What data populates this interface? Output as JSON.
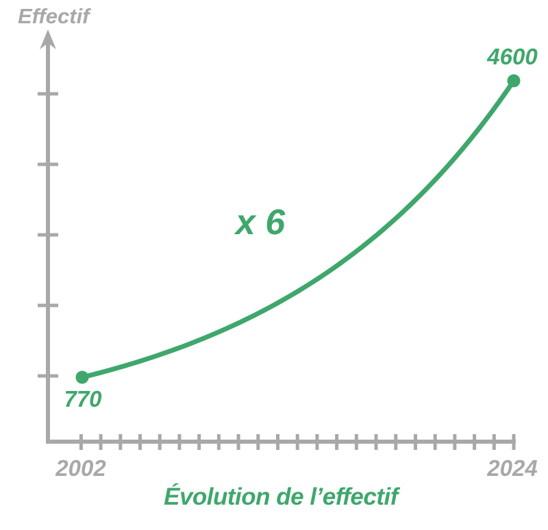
{
  "colors": {
    "accent": "#3fa76c",
    "axis": "#a8a8a8",
    "background": "#ffffff"
  },
  "chart_data": {
    "type": "line",
    "title": "Évolution de l’effectif",
    "ylabel": "Effectif",
    "xlabel": "",
    "annotation": "x 6",
    "x": [
      2002,
      2024
    ],
    "series": [
      {
        "name": "Effectif",
        "values": [
          770,
          4600
        ]
      }
    ],
    "values": [
      770,
      4600
    ],
    "points": [
      {
        "year": 2002,
        "value": 770,
        "year_label": "2002",
        "value_label": "770"
      },
      {
        "year": 2024,
        "value": 4600,
        "year_label": "2024",
        "value_label": "4600"
      }
    ],
    "curve_shape": "exponential",
    "xlim": [
      2002,
      2024
    ],
    "x_tick_interval_years": 1,
    "y_tick_count": 5,
    "grid": false,
    "legend": false
  }
}
